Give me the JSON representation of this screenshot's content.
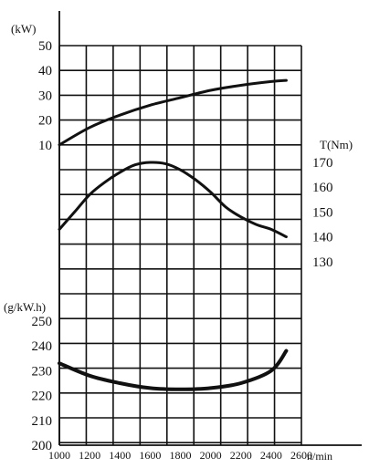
{
  "chart_data": {
    "type": "line",
    "x_label": "n/min",
    "x_ticks": [
      1000,
      1200,
      1400,
      1600,
      1800,
      2000,
      2200,
      2400,
      2600
    ],
    "x_range": [
      1000,
      2600
    ],
    "grid": true,
    "panels": [
      {
        "id": "power",
        "unit_label": "(kW)",
        "axis_side": "left",
        "ticks": [
          10,
          20,
          30,
          40,
          50
        ],
        "series": [
          {
            "color": "#111111",
            "x": [
              1000,
              1200,
              1400,
              1600,
              1800,
              2000,
              2200,
              2400,
              2500
            ],
            "y": [
              10,
              17,
              22,
              26,
              29,
              32,
              34,
              35.5,
              36
            ]
          }
        ]
      },
      {
        "id": "torque",
        "unit_label": "T(Nm)",
        "axis_side": "right",
        "ticks": [
          170,
          160,
          150,
          140,
          130
        ],
        "series": [
          {
            "color": "#111111",
            "x": [
              1000,
              1100,
              1200,
              1300,
              1400,
              1500,
              1600,
              1700,
              1800,
              1900,
              2000,
              2100,
              2200,
              2300,
              2400,
              2500
            ],
            "y": [
              143,
              150,
              157,
              162,
              166,
              169,
              170,
              169.5,
              167,
              163,
              158,
              152,
              148,
              145,
              143,
              140
            ]
          }
        ]
      },
      {
        "id": "consumption",
        "unit_label": "(g/kW.h)",
        "axis_side": "left",
        "ticks": [
          200,
          210,
          220,
          230,
          240,
          250
        ],
        "series": [
          {
            "color": "#111111",
            "x": [
              1000,
              1200,
              1400,
              1600,
              1800,
              2000,
              2200,
              2400,
              2500
            ],
            "y": [
              233,
              228,
              225,
              223,
              222.5,
              223,
              225,
              230,
              238
            ]
          }
        ]
      }
    ]
  }
}
